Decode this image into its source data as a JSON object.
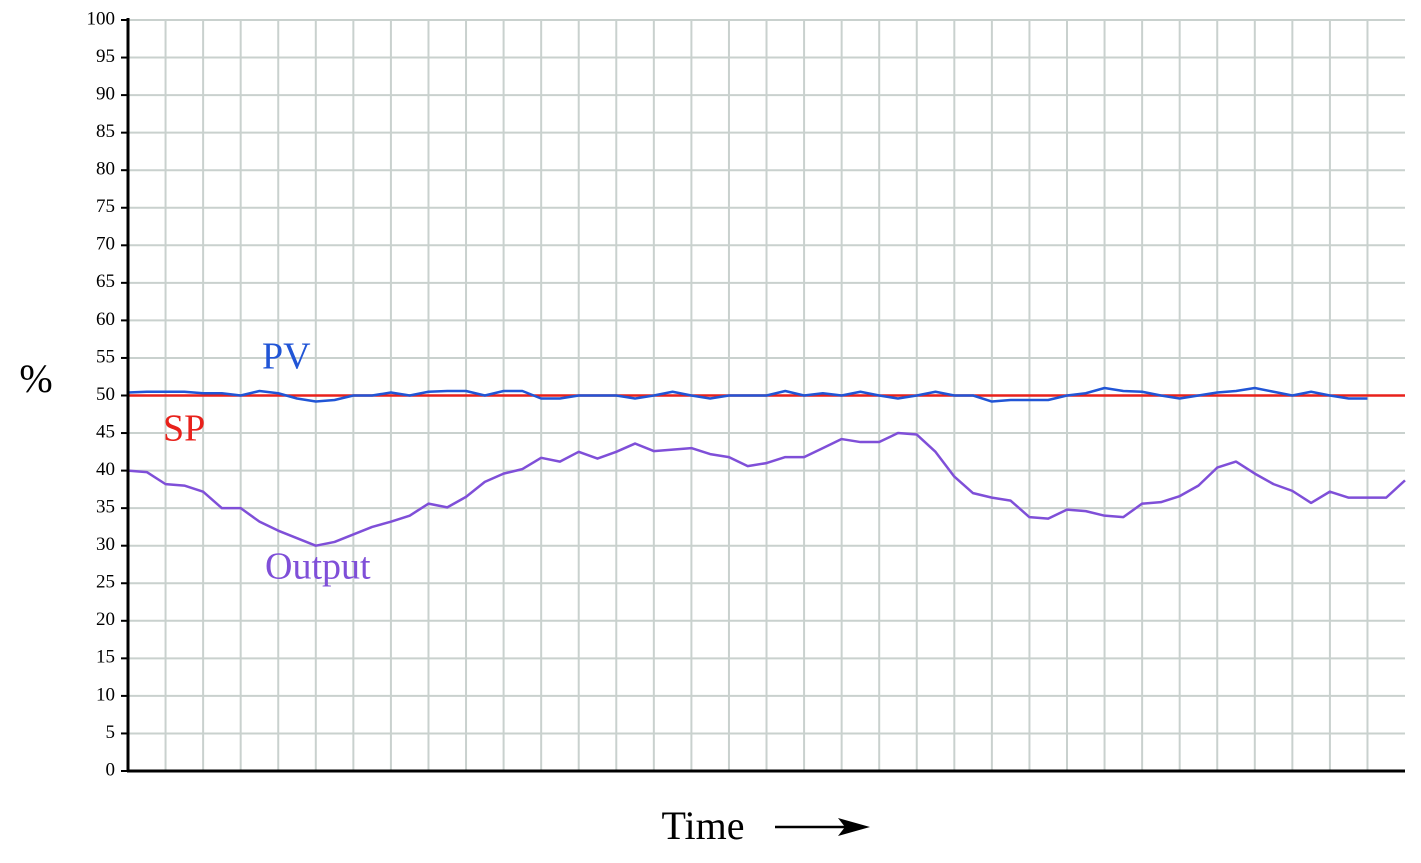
{
  "chart_data": {
    "type": "line",
    "y_label": "%",
    "x_label": "Time",
    "ylim": [
      0,
      100
    ],
    "yticks": [
      0,
      5,
      10,
      15,
      20,
      25,
      30,
      35,
      40,
      45,
      50,
      55,
      60,
      65,
      70,
      75,
      80,
      85,
      90,
      95,
      100
    ],
    "grid": true,
    "series": [
      {
        "name": "SP",
        "color": "#e8211b",
        "values": [
          50,
          50,
          50,
          50,
          50,
          50,
          50,
          50,
          50,
          50,
          50,
          50,
          50,
          50,
          50,
          50,
          50,
          50,
          50,
          50,
          50,
          50,
          50,
          50,
          50,
          50,
          50,
          50,
          50,
          50,
          50,
          50,
          50,
          50,
          50,
          50,
          50,
          50,
          50,
          50,
          50,
          50,
          50,
          50,
          50,
          50,
          50,
          50,
          50,
          50,
          50,
          50,
          50,
          50,
          50,
          50,
          50,
          50,
          50,
          50,
          50,
          50,
          50,
          50,
          50,
          50,
          50,
          50,
          50
        ]
      },
      {
        "name": "PV",
        "color": "#2155d6",
        "values": [
          50.4,
          50.5,
          50.5,
          50.5,
          50.3,
          50.3,
          50,
          50.6,
          50.3,
          49.6,
          49.2,
          49.4,
          50,
          50,
          50.4,
          50,
          50.5,
          50.6,
          50.6,
          50,
          50.6,
          50.6,
          49.6,
          49.6,
          50,
          50,
          50,
          49.6,
          50,
          50.5,
          50,
          49.6,
          50,
          50,
          50,
          50.6,
          50,
          50.3,
          50,
          50.5,
          50,
          49.6,
          50,
          50.5,
          50,
          50,
          49.2,
          49.4,
          49.4,
          49.4,
          50,
          50.3,
          51,
          50.6,
          50.5,
          50,
          49.6,
          50,
          50.4,
          50.6,
          51,
          50.5,
          50,
          50.5,
          50,
          49.6,
          49.6,
          null,
          null
        ]
      },
      {
        "name": "Output",
        "color": "#7f4fd8",
        "values": [
          40,
          39.8,
          38.2,
          38,
          37.2,
          35,
          35,
          33.2,
          32,
          31,
          30,
          30.5,
          31.5,
          32.5,
          33.2,
          34,
          35.6,
          35.1,
          36.5,
          38.5,
          39.6,
          40.2,
          41.7,
          41.2,
          42.5,
          41.6,
          42.5,
          43.6,
          42.6,
          42.8,
          43,
          42.2,
          41.8,
          40.6,
          41,
          41.8,
          41.8,
          43,
          44.2,
          43.8,
          43.8,
          45,
          44.8,
          42.5,
          39.2,
          37,
          36.4,
          36,
          33.8,
          33.6,
          34.8,
          34.6,
          34,
          33.8,
          35.6,
          35.8,
          36.6,
          38,
          40.4,
          41.2,
          39.6,
          38.2,
          37.3,
          35.7,
          37.2,
          36.4,
          36.4,
          36.4,
          38.7
        ]
      }
    ]
  }
}
